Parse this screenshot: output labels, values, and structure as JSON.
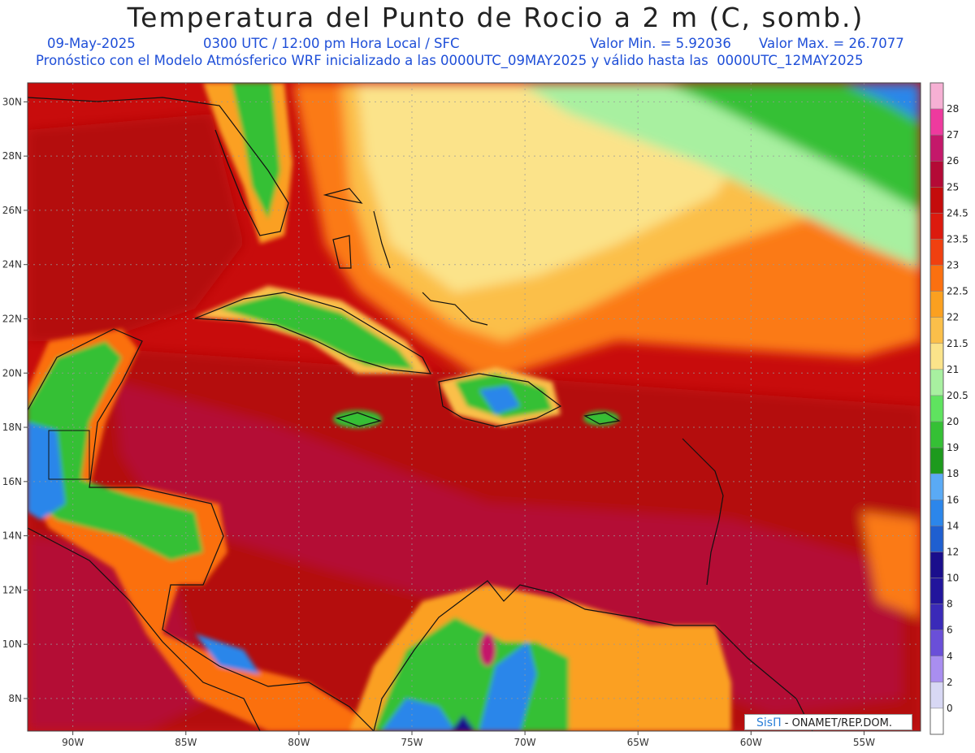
{
  "title": "Temperatura del Punto de Rocio a 2 m (C, somb.)",
  "date_label": "09-May-2025",
  "time_label": "0300 UTC / 12:00 pm Hora Local / SFC",
  "min_label": "Valor Min. = 5.92036",
  "max_label": "Valor Max. = 26.7077",
  "forecast_label": "Pronóstico con el Modelo Atmósferico WRF inicializado a las 0000UTC_09MAY2025 y válido hasta las  0000UTC_12MAY2025",
  "credit": {
    "brand": "SisΠ",
    "text": " - ONAMET/REP.DOM."
  },
  "map": {
    "lon_range": [
      -92,
      -52.5
    ],
    "lat_range": [
      6.8,
      30.7
    ],
    "lon_ticks": [
      {
        "value": -90,
        "label": "90W"
      },
      {
        "value": -85,
        "label": "85W"
      },
      {
        "value": -80,
        "label": "80W"
      },
      {
        "value": -75,
        "label": "75W"
      },
      {
        "value": -70,
        "label": "70W"
      },
      {
        "value": -65,
        "label": "65W"
      },
      {
        "value": -60,
        "label": "60W"
      },
      {
        "value": -55,
        "label": "55W"
      }
    ],
    "lat_ticks": [
      {
        "value": 8,
        "label": "8N"
      },
      {
        "value": 10,
        "label": "10N"
      },
      {
        "value": 12,
        "label": "12N"
      },
      {
        "value": 14,
        "label": "14N"
      },
      {
        "value": 16,
        "label": "16N"
      },
      {
        "value": 18,
        "label": "18N"
      },
      {
        "value": 20,
        "label": "20N"
      },
      {
        "value": 22,
        "label": "22N"
      },
      {
        "value": 24,
        "label": "24N"
      },
      {
        "value": 26,
        "label": "26N"
      },
      {
        "value": 28,
        "label": "28N"
      },
      {
        "value": 30,
        "label": "30N"
      }
    ]
  },
  "colorbar": {
    "levels": [
      {
        "label": "0",
        "color": "#ffffff"
      },
      {
        "label": "2",
        "color": "#d8d8f4"
      },
      {
        "label": "4",
        "color": "#a98ef0"
      },
      {
        "label": "6",
        "color": "#6a4fd8"
      },
      {
        "label": "8",
        "color": "#3a2ab8"
      },
      {
        "label": "10",
        "color": "#22159c"
      },
      {
        "label": "12",
        "color": "#1a0e8c"
      },
      {
        "label": "14",
        "color": "#1f5fd0"
      },
      {
        "label": "16",
        "color": "#2c86ea"
      },
      {
        "label": "18",
        "color": "#5aaaf5"
      },
      {
        "label": "19",
        "color": "#1d9a1d"
      },
      {
        "label": "20",
        "color": "#35c035"
      },
      {
        "label": "20.5",
        "color": "#5fe35f"
      },
      {
        "label": "21",
        "color": "#a8f0a0"
      },
      {
        "label": "21.5",
        "color": "#fbe38a"
      },
      {
        "label": "22",
        "color": "#fbbf4a"
      },
      {
        "label": "22.5",
        "color": "#fba020"
      },
      {
        "label": "23",
        "color": "#fb7010"
      },
      {
        "label": "23.5",
        "color": "#f04010"
      },
      {
        "label": "24.5",
        "color": "#dc1a0e"
      },
      {
        "label": "25",
        "color": "#c40c0c"
      },
      {
        "label": "26",
        "color": "#b40a36"
      },
      {
        "label": "27",
        "color": "#c4186a"
      },
      {
        "label": "28",
        "color": "#ee3a9e"
      },
      {
        "label": "",
        "color": "#f6b0d4"
      }
    ]
  }
}
